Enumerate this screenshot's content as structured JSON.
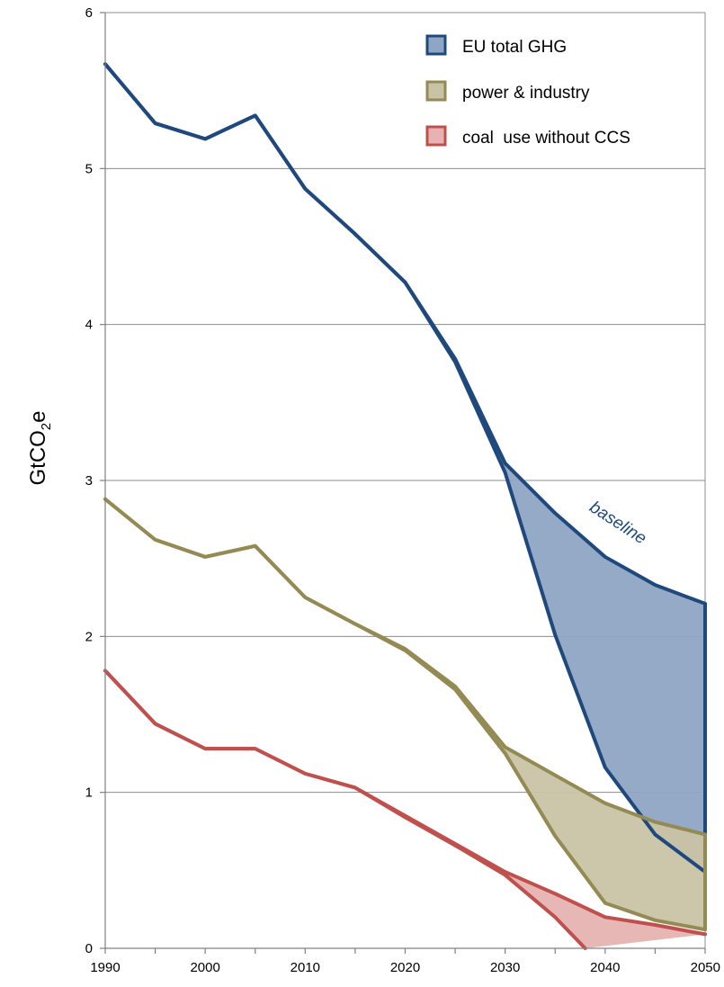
{
  "chart_data": {
    "type": "area",
    "title": "",
    "xlabel": "",
    "ylabel": "GtCO2e",
    "ylabel_parts": {
      "main": "GtCO",
      "sub": "2",
      "tail": "e"
    },
    "xlim": [
      1990,
      2050
    ],
    "ylim": [
      0,
      6
    ],
    "x_ticks": [
      1990,
      2000,
      2010,
      2020,
      2030,
      2040,
      2050
    ],
    "y_ticks": [
      0,
      1,
      2,
      3,
      4,
      5,
      6
    ],
    "x_tick_labels": [
      "1990",
      "2000",
      "2010",
      "2020",
      "2030",
      "2040",
      "2050"
    ],
    "y_tick_labels": [
      "0",
      "1",
      "2",
      "3",
      "4",
      "5",
      "6"
    ],
    "grid": "horizontal",
    "legend_position": "top-right",
    "series": [
      {
        "name": "EU total GHG",
        "color": "#1F497D",
        "fill": "#8EA5C3",
        "upper": {
          "x": [
            1990,
            1995,
            2000,
            2005,
            2010,
            2015,
            2020,
            2025,
            2030,
            2035,
            2040,
            2045,
            2050
          ],
          "y": [
            5.67,
            5.29,
            5.19,
            5.34,
            4.87,
            4.58,
            4.27,
            3.78,
            3.11,
            2.79,
            2.51,
            2.33,
            2.21
          ]
        },
        "lower": {
          "x": [
            1990,
            1995,
            2000,
            2005,
            2010,
            2015,
            2020,
            2025,
            2030,
            2035,
            2040,
            2045,
            2050
          ],
          "y": [
            5.67,
            5.29,
            5.19,
            5.34,
            4.87,
            4.58,
            4.27,
            3.76,
            3.05,
            2.01,
            1.16,
            0.73,
            0.49
          ]
        }
      },
      {
        "name": "power & industry",
        "color": "#948A54",
        "fill": "#C9C3A5",
        "upper": {
          "x": [
            1990,
            1995,
            2000,
            2005,
            2010,
            2015,
            2020,
            2025,
            2030,
            2035,
            2040,
            2045,
            2050
          ],
          "y": [
            2.88,
            2.62,
            2.51,
            2.58,
            2.25,
            2.08,
            1.92,
            1.68,
            1.29,
            1.11,
            0.93,
            0.81,
            0.73
          ]
        },
        "lower": {
          "x": [
            1990,
            1995,
            2000,
            2005,
            2010,
            2015,
            2020,
            2025,
            2030,
            2035,
            2040,
            2045,
            2050
          ],
          "y": [
            2.88,
            2.62,
            2.51,
            2.58,
            2.25,
            2.08,
            1.91,
            1.66,
            1.25,
            0.72,
            0.29,
            0.18,
            0.12
          ]
        }
      },
      {
        "name": "coal  use without CCS",
        "color": "#C0504D",
        "fill": "#E6B3B2",
        "upper": {
          "x": [
            1990,
            1995,
            2000,
            2005,
            2010,
            2015,
            2020,
            2025,
            2030,
            2035,
            2040,
            2045,
            2050
          ],
          "y": [
            1.78,
            1.44,
            1.28,
            1.28,
            1.12,
            1.03,
            0.85,
            0.67,
            0.49,
            0.35,
            0.2,
            0.15,
            0.09
          ]
        },
        "lower": {
          "x": [
            1990,
            1995,
            2000,
            2005,
            2010,
            2015,
            2020,
            2025,
            2030,
            2035,
            2038
          ],
          "y": [
            1.78,
            1.44,
            1.28,
            1.28,
            1.12,
            1.03,
            0.84,
            0.66,
            0.47,
            0.2,
            0.0
          ]
        }
      }
    ],
    "annotations": [
      {
        "text": "baseline",
        "x": 2041,
        "y": 2.7,
        "color": "#1F497D"
      }
    ]
  }
}
